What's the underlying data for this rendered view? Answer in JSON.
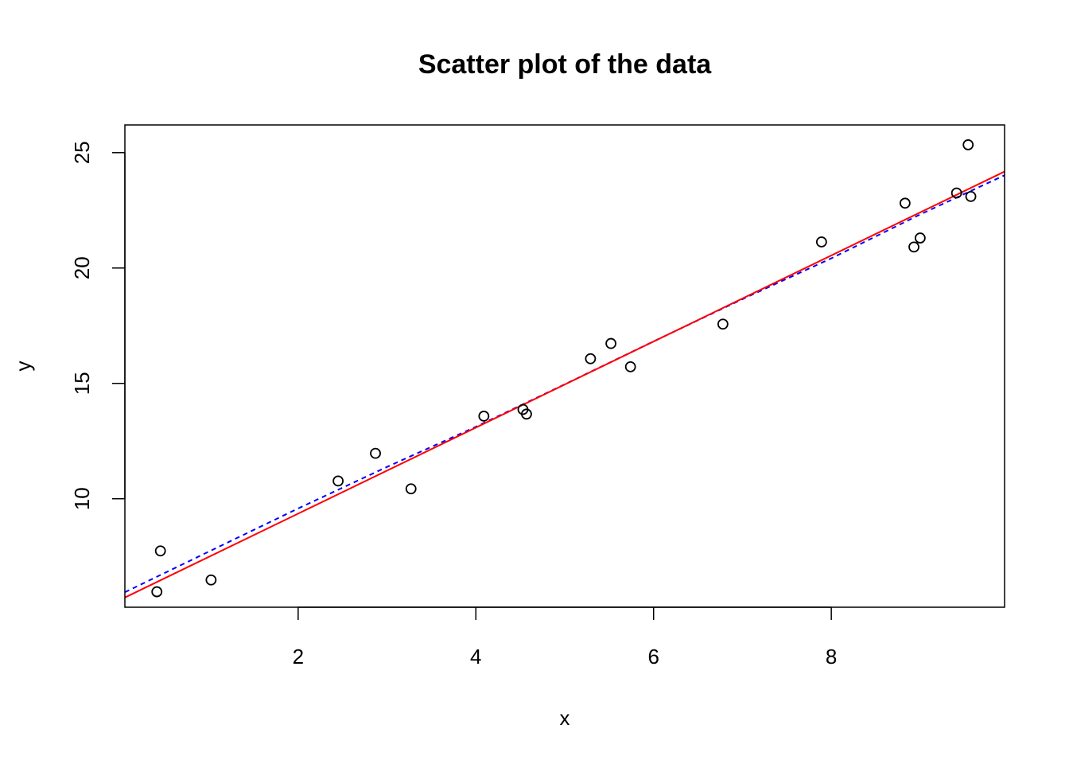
{
  "chart_data": {
    "type": "scatter",
    "title": "Scatter plot of the data",
    "xlabel": "x",
    "ylabel": "y",
    "xlim": [
      0.05,
      9.95
    ],
    "ylim": [
      5.3,
      26.2
    ],
    "x_ticks": [
      2,
      4,
      6,
      8
    ],
    "y_ticks": [
      10,
      15,
      20,
      25
    ],
    "grid": false,
    "legend": "none",
    "points": {
      "x": [
        0.41,
        0.45,
        1.02,
        2.45,
        2.87,
        3.27,
        4.09,
        4.53,
        4.57,
        5.29,
        5.52,
        5.74,
        6.78,
        7.89,
        8.83,
        8.93,
        9.0,
        9.41,
        9.54,
        9.57
      ],
      "y": [
        5.97,
        7.74,
        6.48,
        10.77,
        11.97,
        10.43,
        13.58,
        13.87,
        13.67,
        16.07,
        16.73,
        15.72,
        17.57,
        21.13,
        22.81,
        20.91,
        21.3,
        23.25,
        25.34,
        23.1
      ]
    },
    "fit_line": {
      "style": "solid",
      "color": "#ff0000",
      "x": [
        0.05,
        9.95
      ],
      "y": [
        5.72,
        24.18
      ]
    },
    "smooth_line": {
      "style": "dashed",
      "color": "#0000ff",
      "x": [
        0.05,
        1.0,
        2.0,
        3.0,
        4.0,
        5.0,
        6.0,
        7.0,
        8.0,
        9.0,
        9.95
      ],
      "y": [
        5.95,
        7.72,
        9.58,
        11.38,
        13.12,
        14.96,
        16.82,
        18.65,
        20.42,
        22.32,
        24.02
      ]
    },
    "point_color": "#000000"
  }
}
